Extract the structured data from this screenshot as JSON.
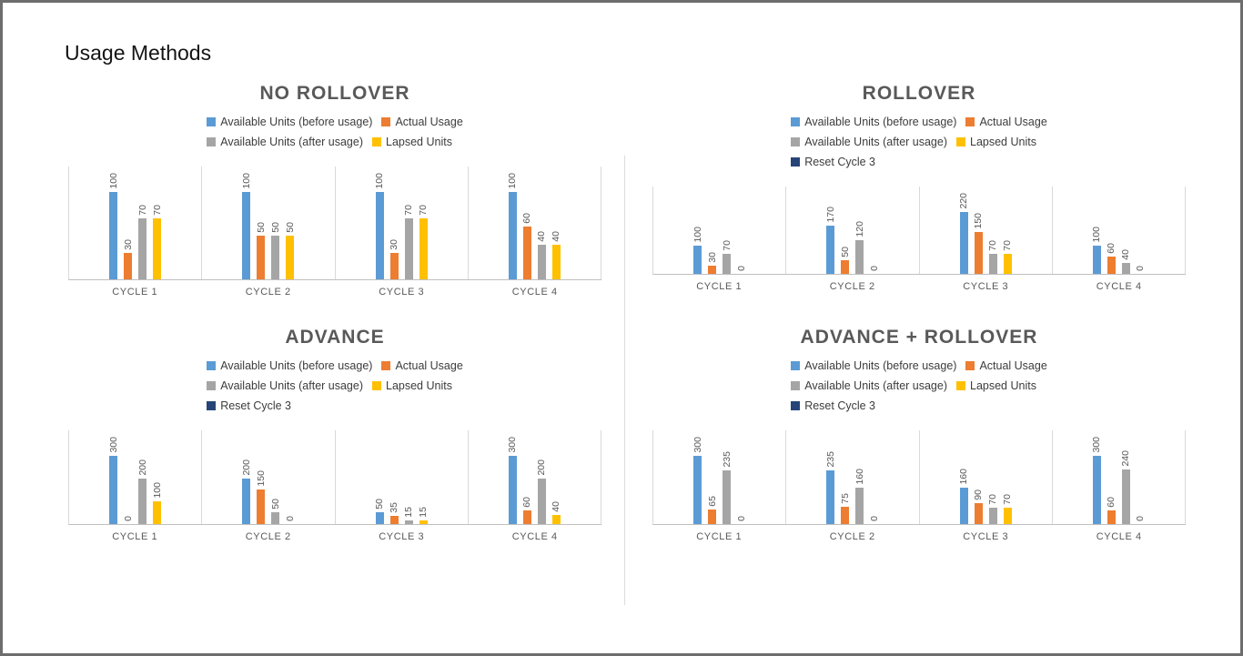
{
  "page": {
    "title": "Usage Methods"
  },
  "colors": {
    "available_before": "#5B9BD5",
    "actual_usage": "#ED7D31",
    "available_after": "#A5A5A5",
    "lapsed_units": "#FFC000",
    "reset_cycle": "#264478",
    "axis_line": "#BFBFBF",
    "gridline": "#D9D9D9",
    "title_text": "#595959"
  },
  "chart_data": [
    {
      "type": "bar",
      "title": "NO ROLLOVER",
      "categories": [
        "CYCLE 1",
        "CYCLE 2",
        "CYCLE 3",
        "CYCLE 4"
      ],
      "legend": [
        {
          "label": "Available Units (before usage)",
          "color": "#5B9BD5"
        },
        {
          "label": "Actual Usage",
          "color": "#ED7D31"
        },
        {
          "label": "Available Units (after usage)",
          "color": "#A5A5A5"
        },
        {
          "label": "Lapsed Units",
          "color": "#FFC000"
        }
      ],
      "series": [
        {
          "name": "Available Units (before usage)",
          "color": "#5B9BD5",
          "values": [
            100,
            100,
            100,
            100
          ]
        },
        {
          "name": "Actual Usage",
          "color": "#ED7D31",
          "values": [
            30,
            50,
            30,
            60
          ]
        },
        {
          "name": "Available Units (after usage)",
          "color": "#A5A5A5",
          "values": [
            70,
            50,
            70,
            40
          ]
        },
        {
          "name": "Lapsed Units",
          "color": "#FFC000",
          "values": [
            70,
            50,
            70,
            40
          ]
        }
      ],
      "ylim": [
        0,
        100
      ],
      "grid": false,
      "legend_position": "top",
      "data_labels": "vertical"
    },
    {
      "type": "bar",
      "title": "ROLLOVER",
      "categories": [
        "CYCLE 1",
        "CYCLE 2",
        "CYCLE 3",
        "CYCLE 4"
      ],
      "legend": [
        {
          "label": "Available Units (before usage)",
          "color": "#5B9BD5"
        },
        {
          "label": "Actual Usage",
          "color": "#ED7D31"
        },
        {
          "label": "Available Units (after usage)",
          "color": "#A5A5A5"
        },
        {
          "label": "Lapsed Units",
          "color": "#FFC000"
        },
        {
          "label": "Reset Cycle 3",
          "color": "#264478"
        }
      ],
      "series": [
        {
          "name": "Available Units (before usage)",
          "color": "#5B9BD5",
          "values": [
            100,
            170,
            220,
            100
          ]
        },
        {
          "name": "Actual Usage",
          "color": "#ED7D31",
          "values": [
            30,
            50,
            150,
            60
          ]
        },
        {
          "name": "Available Units (after usage)",
          "color": "#A5A5A5",
          "values": [
            70,
            120,
            70,
            40
          ]
        },
        {
          "name": "Lapsed Units",
          "color": "#FFC000",
          "values": [
            0,
            0,
            70,
            0
          ]
        }
      ],
      "ylim": [
        0,
        220
      ],
      "grid": false,
      "legend_position": "top",
      "data_labels": "vertical"
    },
    {
      "type": "bar",
      "title": "ADVANCE",
      "categories": [
        "CYCLE 1",
        "CYCLE 2",
        "CYCLE 3",
        "CYCLE 4"
      ],
      "legend": [
        {
          "label": "Available Units (before usage)",
          "color": "#5B9BD5"
        },
        {
          "label": "Actual Usage",
          "color": "#ED7D31"
        },
        {
          "label": "Available Units (after usage)",
          "color": "#A5A5A5"
        },
        {
          "label": "Lapsed Units",
          "color": "#FFC000"
        },
        {
          "label": "Reset Cycle 3",
          "color": "#264478"
        }
      ],
      "series": [
        {
          "name": "Available Units (before usage)",
          "color": "#5B9BD5",
          "values": [
            300,
            200,
            50,
            300
          ]
        },
        {
          "name": "Actual Usage",
          "color": "#ED7D31",
          "values": [
            0,
            150,
            35,
            60
          ]
        },
        {
          "name": "Available Units (after usage)",
          "color": "#A5A5A5",
          "values": [
            200,
            50,
            15,
            200
          ]
        },
        {
          "name": "Lapsed Units",
          "color": "#FFC000",
          "values": [
            100,
            0,
            15,
            40
          ]
        }
      ],
      "ylim": [
        0,
        300
      ],
      "grid": false,
      "legend_position": "top",
      "data_labels": "vertical"
    },
    {
      "type": "bar",
      "title": "ADVANCE + ROLLOVER",
      "categories": [
        "CYCLE 1",
        "CYCLE 2",
        "CYCLE 3",
        "CYCLE 4"
      ],
      "legend": [
        {
          "label": "Available Units (before usage)",
          "color": "#5B9BD5"
        },
        {
          "label": "Actual Usage",
          "color": "#ED7D31"
        },
        {
          "label": "Available Units (after usage)",
          "color": "#A5A5A5"
        },
        {
          "label": "Lapsed Units",
          "color": "#FFC000"
        },
        {
          "label": "Reset Cycle 3",
          "color": "#264478"
        }
      ],
      "series": [
        {
          "name": "Available Units (before usage)",
          "color": "#5B9BD5",
          "values": [
            300,
            235,
            160,
            300
          ]
        },
        {
          "name": "Actual Usage",
          "color": "#ED7D31",
          "values": [
            65,
            75,
            90,
            60
          ]
        },
        {
          "name": "Available Units (after usage)",
          "color": "#A5A5A5",
          "values": [
            235,
            160,
            70,
            240
          ]
        },
        {
          "name": "Lapsed Units",
          "color": "#FFC000",
          "values": [
            0,
            0,
            70,
            0
          ]
        }
      ],
      "ylim": [
        0,
        300
      ],
      "grid": false,
      "legend_position": "top",
      "data_labels": "vertical"
    }
  ]
}
